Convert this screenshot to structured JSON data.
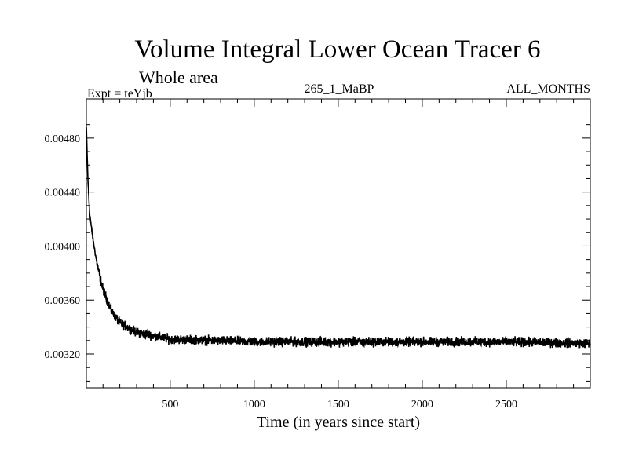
{
  "chart_data": {
    "type": "line",
    "title": "Volume Integral Lower Ocean Tracer 6",
    "subtitle": "Whole area",
    "experiment": "Expt = teYjb",
    "run": "265_1_MaBP",
    "period": "ALL_MONTHS",
    "xlabel": "Time (in years since start)",
    "ylabel": "",
    "xlim": [
      1,
      3000
    ],
    "ylim": [
      0.00295,
      0.00509
    ],
    "x_ticks": [
      500,
      1000,
      1500,
      2000,
      2500
    ],
    "y_ticks": [
      "0.00320",
      "0.00360",
      "0.00400",
      "0.00440",
      "0.00480"
    ],
    "series": [
      {
        "name": "Volume Integral Lower Ocean Tracer 6",
        "color": "#000000",
        "description_points": {
          "x": [
            1,
            10,
            20,
            40,
            60,
            80,
            100,
            150,
            200,
            300,
            500,
            1000,
            1500,
            2000,
            2500,
            3000
          ],
          "y": [
            0.00488,
            0.0045,
            0.00425,
            0.00405,
            0.0039,
            0.00378,
            0.00368,
            0.00352,
            0.00343,
            0.00336,
            0.00331,
            0.00329,
            0.00329,
            0.00329,
            0.00329,
            0.00328
          ]
        },
        "noise_amplitude": 5e-05
      }
    ]
  }
}
